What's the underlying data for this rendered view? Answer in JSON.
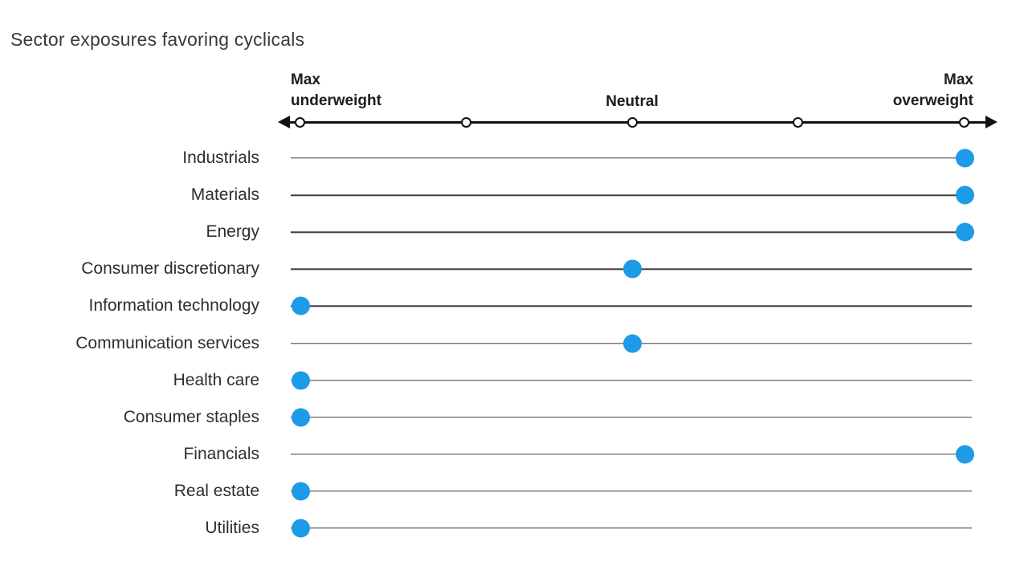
{
  "title": "Sector exposures favoring cyclicals",
  "axis": {
    "left_label": "Max\nunderweight",
    "center_label": "Neutral",
    "right_label": "Max\noverweight"
  },
  "colors": {
    "dot": "#1D9BE8",
    "axis": "#111111",
    "row_line": "#3C3C3C",
    "text": "#2E2E2E"
  },
  "chart_data": {
    "type": "scatter",
    "subtype": "dot-plot",
    "title": "Sector exposures favoring cyclicals",
    "x_axis": {
      "min_label": "Max underweight",
      "mid_label": "Neutral",
      "max_label": "Max overweight",
      "range": [
        0,
        4
      ],
      "tick_values": [
        0,
        1,
        2,
        3,
        4
      ],
      "grid": false
    },
    "rows": [
      {
        "label": "Industrials",
        "value": 4,
        "position": "Max overweight"
      },
      {
        "label": "Materials",
        "value": 4,
        "position": "Max overweight"
      },
      {
        "label": "Energy",
        "value": 4,
        "position": "Max overweight"
      },
      {
        "label": "Consumer discretionary",
        "value": 2,
        "position": "Neutral"
      },
      {
        "label": "Information technology",
        "value": 0,
        "position": "Max underweight"
      },
      {
        "label": "Communication services",
        "value": 2,
        "position": "Neutral"
      },
      {
        "label": "Health care",
        "value": 0,
        "position": "Max underweight"
      },
      {
        "label": "Consumer staples",
        "value": 0,
        "position": "Max underweight"
      },
      {
        "label": "Financials",
        "value": 4,
        "position": "Max overweight"
      },
      {
        "label": "Real estate",
        "value": 0,
        "position": "Max underweight"
      },
      {
        "label": "Utilities",
        "value": 0,
        "position": "Max underweight"
      }
    ]
  }
}
